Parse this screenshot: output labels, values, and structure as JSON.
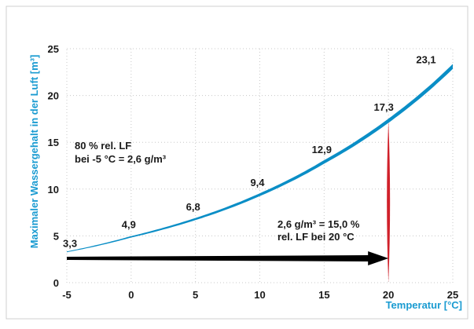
{
  "colors": {
    "curve": "#0a8ec6",
    "axis_label": "#1a9bd1",
    "arrow": "#000000",
    "marker": "#d0202a",
    "border": "#cfcfcf",
    "grid": "#c8c8c8"
  },
  "chart_data": {
    "type": "line",
    "title": "",
    "xlabel": "Temperatur [°C]",
    "ylabel": "Maximaler Wassergehalt in der Luft [m³]",
    "xlim": [
      -5,
      25
    ],
    "ylim": [
      0,
      25
    ],
    "x_ticks": [
      "-5",
      "0",
      "5",
      "10",
      "15",
      "20",
      "25"
    ],
    "y_ticks": [
      "0",
      "5",
      "10",
      "15",
      "20",
      "25"
    ],
    "grid": true,
    "series": [
      {
        "x": [
          -5,
          0,
          5,
          10,
          15,
          20,
          25
        ],
        "y": [
          3.3,
          4.9,
          6.8,
          9.4,
          12.9,
          17.3,
          23.1
        ],
        "point_labels": [
          "3,3",
          "4,9",
          "6,8",
          "9,4",
          "12,9",
          "17,3",
          "23,1"
        ]
      }
    ],
    "annotations": {
      "left_note": [
        "80 % rel. LF",
        "bei -5 °C = 2,6 g/m³"
      ],
      "right_note": [
        "2,6 g/m³ = 15,0 %",
        "rel. LF bei 20 °C"
      ],
      "arrow": {
        "y": 2.6,
        "x_from": -5,
        "x_to": 20
      },
      "marker": {
        "x": 20,
        "y_from": 0,
        "y_to": 17.3
      }
    }
  }
}
